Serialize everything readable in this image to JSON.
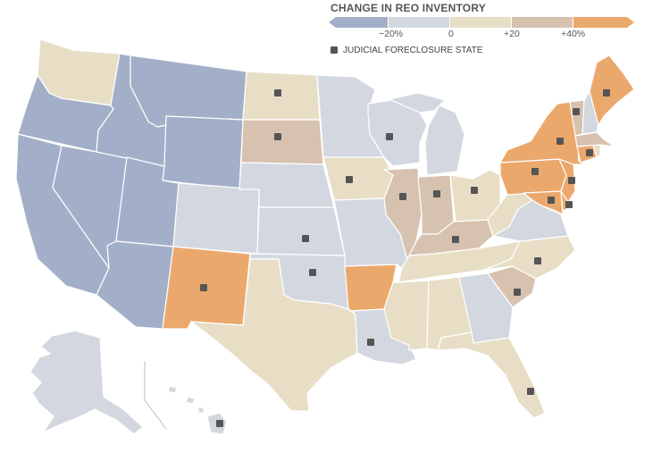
{
  "legend": {
    "title": "CHANGE IN REO INVENTORY",
    "ticks": [
      "−20%",
      "0",
      "+20",
      "+40%"
    ],
    "judicial_label": "JUDICIAL FORECLOSURE STATE",
    "colors": {
      "decrease_strong": "#a3afc8",
      "decrease_mild": "#d3d7e0",
      "increase_mild": "#e8dec6",
      "increase_medium": "#d7c2b0",
      "increase_strong": "#eba86d"
    }
  },
  "states": [
    {
      "code": "WA",
      "category": "increase_mild",
      "judicial": false
    },
    {
      "code": "OR",
      "category": "decrease_strong",
      "judicial": false
    },
    {
      "code": "CA",
      "category": "decrease_strong",
      "judicial": false
    },
    {
      "code": "NV",
      "category": "decrease_strong",
      "judicial": false
    },
    {
      "code": "ID",
      "category": "decrease_strong",
      "judicial": false
    },
    {
      "code": "MT",
      "category": "decrease_strong",
      "judicial": false
    },
    {
      "code": "WY",
      "category": "decrease_strong",
      "judicial": false
    },
    {
      "code": "UT",
      "category": "decrease_strong",
      "judicial": false
    },
    {
      "code": "AZ",
      "category": "decrease_strong",
      "judicial": false
    },
    {
      "code": "CO",
      "category": "decrease_mild",
      "judicial": false
    },
    {
      "code": "NM",
      "category": "increase_strong",
      "judicial": true
    },
    {
      "code": "ND",
      "category": "increase_mild",
      "judicial": true
    },
    {
      "code": "SD",
      "category": "increase_medium",
      "judicial": true
    },
    {
      "code": "NE",
      "category": "decrease_mild",
      "judicial": false
    },
    {
      "code": "KS",
      "category": "decrease_mild",
      "judicial": true
    },
    {
      "code": "OK",
      "category": "decrease_mild",
      "judicial": true
    },
    {
      "code": "TX",
      "category": "increase_mild",
      "judicial": false
    },
    {
      "code": "MN",
      "category": "decrease_mild",
      "judicial": false
    },
    {
      "code": "IA",
      "category": "increase_mild",
      "judicial": true
    },
    {
      "code": "MO",
      "category": "decrease_mild",
      "judicial": false
    },
    {
      "code": "AR",
      "category": "increase_strong",
      "judicial": false
    },
    {
      "code": "LA",
      "category": "decrease_mild",
      "judicial": true
    },
    {
      "code": "WI",
      "category": "decrease_mild",
      "judicial": true
    },
    {
      "code": "IL",
      "category": "increase_medium",
      "judicial": true
    },
    {
      "code": "MI",
      "category": "decrease_mild",
      "judicial": false
    },
    {
      "code": "IN",
      "category": "increase_medium",
      "judicial": true
    },
    {
      "code": "OH",
      "category": "increase_mild",
      "judicial": true
    },
    {
      "code": "KY",
      "category": "increase_medium",
      "judicial": true
    },
    {
      "code": "TN",
      "category": "increase_mild",
      "judicial": false
    },
    {
      "code": "MS",
      "category": "increase_mild",
      "judicial": false
    },
    {
      "code": "AL",
      "category": "increase_mild",
      "judicial": false
    },
    {
      "code": "GA",
      "category": "decrease_mild",
      "judicial": false
    },
    {
      "code": "FL",
      "category": "increase_mild",
      "judicial": true
    },
    {
      "code": "SC",
      "category": "increase_medium",
      "judicial": true
    },
    {
      "code": "NC",
      "category": "increase_mild",
      "judicial": true
    },
    {
      "code": "VA",
      "category": "decrease_mild",
      "judicial": false
    },
    {
      "code": "WV",
      "category": "increase_mild",
      "judicial": false
    },
    {
      "code": "PA",
      "category": "increase_strong",
      "judicial": true
    },
    {
      "code": "NY",
      "category": "increase_strong",
      "judicial": true
    },
    {
      "code": "VT",
      "category": "increase_medium",
      "judicial": true
    },
    {
      "code": "NH",
      "category": "decrease_mild",
      "judicial": false
    },
    {
      "code": "ME",
      "category": "increase_strong",
      "judicial": true
    },
    {
      "code": "MA",
      "category": "increase_medium",
      "judicial": false
    },
    {
      "code": "CT",
      "category": "increase_strong",
      "judicial": true
    },
    {
      "code": "RI",
      "category": "increase_mild",
      "judicial": false
    },
    {
      "code": "NJ",
      "category": "increase_strong",
      "judicial": true
    },
    {
      "code": "DE",
      "category": "increase_strong",
      "judicial": true
    },
    {
      "code": "MD",
      "category": "increase_strong",
      "judicial": true
    },
    {
      "code": "AK",
      "category": "decrease_mild",
      "judicial": false
    },
    {
      "code": "HI",
      "category": "decrease_mild",
      "judicial": true
    }
  ]
}
